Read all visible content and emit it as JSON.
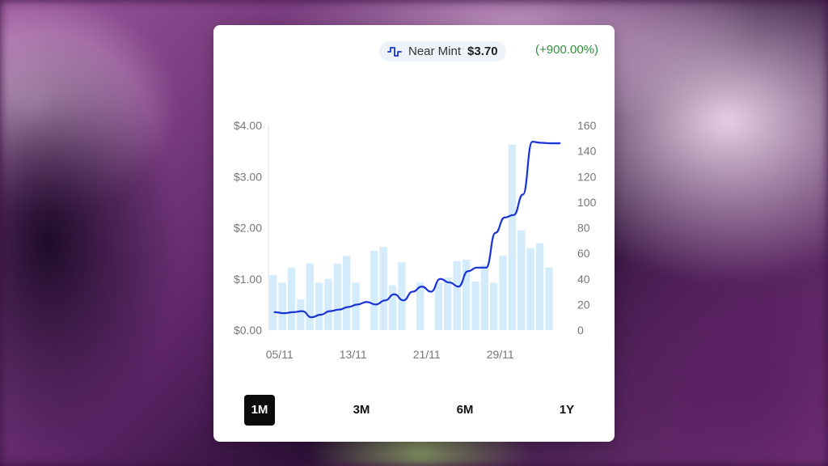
{
  "badge": {
    "icon": "step-line-icon",
    "condition": "Near Mint",
    "price": "$3.70"
  },
  "change": "(+900.00%)",
  "colors": {
    "line": "#1833d6",
    "bars": "#d3ebfb",
    "change": "#2f8f3a",
    "active_tab": "#0b0b0b"
  },
  "tabs": [
    {
      "label": "1M",
      "active": true
    },
    {
      "label": "3M",
      "active": false
    },
    {
      "label": "6M",
      "active": false
    },
    {
      "label": "1Y",
      "active": false
    }
  ],
  "chart_data": {
    "type": "bar+line",
    "x_ticks": [
      "05/11",
      "13/11",
      "21/11",
      "29/11"
    ],
    "y_left": {
      "ticks": [
        "$0.00",
        "$1.00",
        "$2.00",
        "$3.00",
        "$4.00"
      ],
      "range": [
        0,
        4
      ]
    },
    "y_right": {
      "ticks": [
        "0",
        "20",
        "40",
        "60",
        "80",
        "100",
        "120",
        "140",
        "160"
      ],
      "range": [
        0,
        160
      ]
    },
    "grid": false,
    "bars": {
      "axis": "right",
      "values": [
        43,
        37,
        49,
        24,
        52,
        37,
        40,
        52,
        58,
        37,
        0,
        62,
        65,
        35,
        53,
        0,
        37,
        0,
        37,
        41,
        54,
        55,
        38,
        51,
        37,
        58,
        145,
        78,
        64,
        68,
        49,
        0
      ]
    },
    "line": {
      "axis": "left",
      "dates": [
        "05/11",
        "06/11",
        "07/11",
        "08/11",
        "09/11",
        "10/11",
        "11/11",
        "12/11",
        "13/11",
        "14/11",
        "15/11",
        "16/11",
        "17/11",
        "18/11",
        "19/11",
        "20/11",
        "21/11",
        "22/11",
        "23/11",
        "24/11",
        "25/11",
        "26/11",
        "27/11",
        "28/11",
        "29/11",
        "30/11",
        "01/12",
        "02/12",
        "03/12",
        "04/12",
        "05/12",
        "06/12"
      ],
      "values": [
        0.35,
        0.33,
        0.35,
        0.37,
        0.25,
        0.3,
        0.37,
        0.4,
        0.45,
        0.5,
        0.55,
        0.5,
        0.58,
        0.7,
        0.58,
        0.75,
        0.85,
        0.75,
        1.0,
        0.93,
        0.85,
        1.15,
        1.22,
        1.22,
        1.9,
        2.2,
        2.25,
        2.65,
        3.68,
        3.66,
        3.65,
        3.65
      ]
    }
  }
}
